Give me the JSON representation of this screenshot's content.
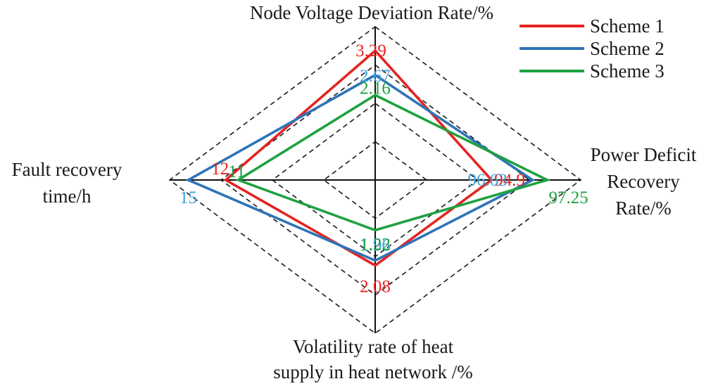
{
  "chart_data": {
    "type": "radar",
    "axes": [
      {
        "name": "Node Voltage Deviation Rate/%",
        "lines": [
          "Node Voltage Deviation Rate/%"
        ]
      },
      {
        "name": "Power Deficit Recovery Rate/%",
        "lines": [
          "Power Deficit",
          "Recovery",
          "Rate/%"
        ]
      },
      {
        "name": "Volatility rate of heat supply in heat network /%",
        "lines": [
          "Volatility rate of heat",
          "supply in heat network /%"
        ]
      },
      {
        "name": "Fault recovery time/h",
        "lines": [
          "Fault recovery",
          "time/h"
        ]
      }
    ],
    "series": [
      {
        "name": "Scheme 1",
        "color": "#e52421",
        "values": [
          3.29,
          94.9,
          2.08,
          12
        ],
        "labels": [
          "3.29",
          "94.9",
          "2.08",
          "12"
        ]
      },
      {
        "name": "Scheme 2",
        "color": "#2e73b8",
        "label_color": "#3fa3d9",
        "values": [
          2.67,
          96.63,
          1.96,
          15
        ],
        "labels": [
          "2.67",
          "96.63",
          "1.96",
          "15"
        ]
      },
      {
        "name": "Scheme 3",
        "color": "#1fa141",
        "values": [
          2.16,
          97.25,
          1.22,
          11
        ],
        "labels": [
          "2.16",
          "97.25",
          "1.22",
          "11"
        ]
      }
    ],
    "legend": {
      "position": "top-right"
    },
    "grid": {
      "shape": "diamond",
      "rings": 4,
      "style": "dashed"
    }
  }
}
